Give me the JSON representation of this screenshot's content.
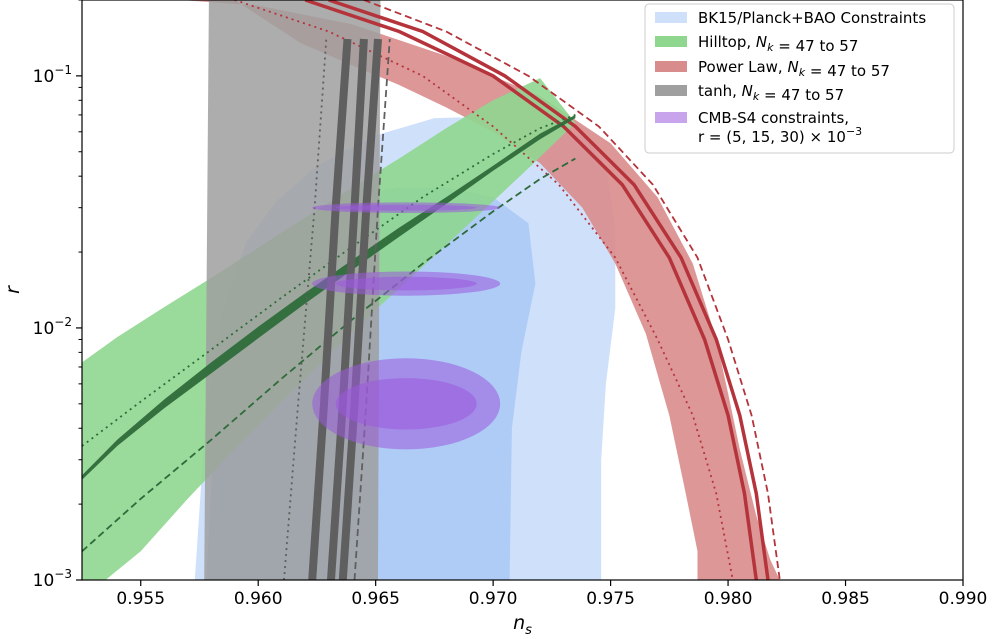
{
  "chart_data": {
    "type": "area",
    "xlabel": "n_s",
    "ylabel": "r",
    "xlim": [
      0.9525,
      0.99
    ],
    "ylim": [
      0.001,
      0.2
    ],
    "yscale": "log",
    "grid": false,
    "legend_position": "top-right",
    "x_ticks": [
      0.955,
      0.96,
      0.965,
      0.97,
      0.975,
      0.98,
      0.985,
      0.99
    ],
    "x_tick_labels": [
      "0.955",
      "0.960",
      "0.965",
      "0.970",
      "0.975",
      "0.980",
      "0.985",
      "0.990"
    ],
    "y_ticks": [
      0.001,
      0.01,
      0.1
    ],
    "y_tick_labels": [
      "10^{-3}",
      "10^{-2}",
      "10^{-1}"
    ],
    "colors": {
      "bk_outer": "#cfe0fb",
      "bk_inner": "#a9c8f6",
      "hilltop": "#8fd68f",
      "hilltop_line": "#2e6b3a",
      "powerlaw": "#d98c8c",
      "powerlaw_line": "#b5343c",
      "tanh": "#9f9f9f",
      "tanh_line": "#5f5f5f",
      "cmbs4": "#9b59dd"
    },
    "legend": [
      {
        "key": "bk15",
        "label": "BK15/Planck+BAO Constraints",
        "color": "#cfe0fb"
      },
      {
        "key": "hilltop",
        "label": "Hilltop, N_k = 47 to 57",
        "color": "#8fd68f"
      },
      {
        "key": "powerlaw",
        "label": "Power Law, N_k = 47 to 57",
        "color": "#d98c8c"
      },
      {
        "key": "tanh",
        "label": "tanh, N_k = 47 to 57",
        "color": "#9f9f9f"
      },
      {
        "key": "cmbs4",
        "label": "CMB-S4 constraints,",
        "label2": "r = (5, 15, 30) × 10^{-3}",
        "color": "#c7a4ec"
      }
    ],
    "series": [
      {
        "name": "BK15/Planck+BAO Constraints",
        "kind": "region",
        "level": "outer",
        "x": [
          0.9573,
          0.9578,
          0.9585,
          0.9595,
          0.9608,
          0.9625,
          0.965,
          0.9675,
          0.97,
          0.9725,
          0.974,
          0.9748,
          0.9752,
          0.9752,
          0.9748,
          0.9746,
          0.9746,
          0.9573
        ],
        "y": [
          0.001,
          0.005,
          0.012,
          0.022,
          0.032,
          0.044,
          0.058,
          0.068,
          0.069,
          0.064,
          0.056,
          0.044,
          0.025,
          0.012,
          0.006,
          0.003,
          0.001,
          0.001
        ]
      },
      {
        "name": "BK15/Planck+BAO Constraints",
        "kind": "region",
        "level": "inner",
        "x": [
          0.9578,
          0.9582,
          0.9588,
          0.9598,
          0.961,
          0.9625,
          0.964,
          0.966,
          0.968,
          0.97,
          0.9715,
          0.9718,
          0.9712,
          0.9708,
          0.9707,
          0.9578
        ],
        "y": [
          0.001,
          0.005,
          0.01,
          0.016,
          0.022,
          0.028,
          0.033,
          0.036,
          0.036,
          0.033,
          0.026,
          0.015,
          0.008,
          0.004,
          0.001,
          0.001
        ]
      },
      {
        "name": "Hilltop, N_k = 47 to 57",
        "kind": "band",
        "x": [
          0.9525,
          0.954,
          0.956,
          0.958,
          0.96,
          0.962,
          0.964,
          0.966,
          0.968,
          0.97,
          0.972,
          0.9735,
          0.9735,
          0.9715,
          0.969,
          0.967,
          0.965,
          0.963,
          0.961,
          0.959,
          0.957,
          0.955,
          0.9535,
          0.9525
        ],
        "y": [
          0.0073,
          0.0092,
          0.0121,
          0.0158,
          0.0208,
          0.0274,
          0.036,
          0.047,
          0.062,
          0.08,
          0.098,
          0.065,
          0.065,
          0.043,
          0.026,
          0.0175,
          0.0118,
          0.0078,
          0.0051,
          0.0033,
          0.0021,
          0.0013,
          0.001,
          0.001
        ]
      },
      {
        "name": "Hilltop, N_k = 47 to 57",
        "kind": "band",
        "x": [
          0.9525,
          0.954,
          0.956,
          0.958,
          0.96,
          0.962,
          0.964,
          0.966,
          0.968,
          0.97,
          0.972,
          0.9735,
          0.9735,
          0.972,
          0.97,
          0.968,
          0.966,
          0.964,
          0.962,
          0.96,
          0.958,
          0.956,
          0.954,
          0.9525
        ],
        "y": [
          0.0025,
          0.0034,
          0.0048,
          0.0066,
          0.0091,
          0.0125,
          0.017,
          0.023,
          0.031,
          0.042,
          0.056,
          0.068,
          0.07,
          0.059,
          0.044,
          0.033,
          0.025,
          0.0186,
          0.0138,
          0.0101,
          0.0073,
          0.0052,
          0.0036,
          0.0026
        ],
        "style": "thick"
      },
      {
        "name": "Hilltop, N_k = 47 to 57",
        "kind": "line",
        "style": "dotted",
        "x": [
          0.9525,
          0.955,
          0.958,
          0.961,
          0.964,
          0.967,
          0.97,
          0.972,
          0.9735
        ],
        "y": [
          0.0034,
          0.0051,
          0.0082,
          0.0132,
          0.021,
          0.033,
          0.049,
          0.062,
          0.07
        ]
      },
      {
        "name": "Hilltop, N_k = 47 to 57",
        "kind": "line",
        "style": "dashed",
        "x": [
          0.9525,
          0.955,
          0.958,
          0.961,
          0.964,
          0.967,
          0.97,
          0.972,
          0.9735
        ],
        "y": [
          0.0013,
          0.0021,
          0.0036,
          0.0063,
          0.0108,
          0.018,
          0.029,
          0.039,
          0.047
        ]
      },
      {
        "name": "Power Law, N_k = 47 to 57",
        "kind": "band",
        "x": [
          0.9567,
          0.96,
          0.964,
          0.968,
          0.972,
          0.975,
          0.977,
          0.9785,
          0.9795,
          0.98,
          0.9805,
          0.9812,
          0.9818,
          0.9822,
          0.9822,
          0.9787,
          0.9787,
          0.9782,
          0.9775,
          0.9765,
          0.9752,
          0.9738,
          0.972,
          0.97,
          0.968,
          0.966,
          0.964,
          0.9618,
          0.959
        ],
        "y": [
          0.2,
          0.19,
          0.16,
          0.12,
          0.083,
          0.054,
          0.033,
          0.018,
          0.009,
          0.0055,
          0.0033,
          0.0018,
          0.0012,
          0.001,
          0.001,
          0.001,
          0.0013,
          0.0022,
          0.0045,
          0.0095,
          0.018,
          0.03,
          0.045,
          0.06,
          0.075,
          0.092,
          0.11,
          0.135,
          0.2
        ]
      },
      {
        "name": "Power Law, N_k = 47 to 57",
        "kind": "line",
        "style": "solid",
        "x": [
          0.962,
          0.966,
          0.97,
          0.973,
          0.9755,
          0.9775,
          0.979,
          0.98,
          0.9807,
          0.9812
        ],
        "y": [
          0.2,
          0.15,
          0.1,
          0.063,
          0.037,
          0.019,
          0.009,
          0.0045,
          0.0022,
          0.001
        ]
      },
      {
        "name": "Power Law, N_k = 47 to 57",
        "kind": "line",
        "style": "solid",
        "x": [
          0.963,
          0.967,
          0.9705,
          0.9735,
          0.976,
          0.978,
          0.9795,
          0.9805,
          0.9812,
          0.9817
        ],
        "y": [
          0.2,
          0.15,
          0.1,
          0.063,
          0.037,
          0.019,
          0.009,
          0.0045,
          0.0022,
          0.001
        ]
      },
      {
        "name": "Power Law, N_k = 47 to 57",
        "kind": "line",
        "style": "dotted",
        "x": [
          0.959,
          0.963,
          0.967,
          0.97,
          0.9728,
          0.9752,
          0.977,
          0.9785,
          0.9795,
          0.9802
        ],
        "y": [
          0.2,
          0.15,
          0.1,
          0.063,
          0.037,
          0.019,
          0.009,
          0.0045,
          0.0022,
          0.001
        ]
      },
      {
        "name": "Power Law, N_k = 47 to 57",
        "kind": "line",
        "style": "dashed",
        "x": [
          0.9645,
          0.968,
          0.9715,
          0.9745,
          0.9768,
          0.9787,
          0.98,
          0.981,
          0.9817,
          0.9822
        ],
        "y": [
          0.2,
          0.15,
          0.1,
          0.063,
          0.037,
          0.019,
          0.009,
          0.0045,
          0.0022,
          0.001
        ]
      },
      {
        "name": "tanh, N_k = 47 to 57",
        "kind": "band",
        "x": [
          0.9577,
          0.9579,
          0.9652,
          0.9651
        ],
        "y": [
          0.001,
          0.2,
          0.2,
          0.001
        ]
      },
      {
        "name": "tanh, N_k = 47 to 57",
        "kind": "line",
        "style": "thick",
        "x": [
          0.9623,
          0.9628,
          0.9633,
          0.9638
        ],
        "y": [
          0.001,
          0.005,
          0.03,
          0.14
        ]
      },
      {
        "name": "tanh, N_k = 47 to 57",
        "kind": "line",
        "style": "thick",
        "x": [
          0.9631,
          0.9636,
          0.9641,
          0.9645
        ],
        "y": [
          0.001,
          0.005,
          0.03,
          0.14
        ]
      },
      {
        "name": "tanh, N_k = 47 to 57",
        "kind": "line",
        "style": "thick",
        "x": [
          0.9636,
          0.9641,
          0.9646,
          0.9651
        ],
        "y": [
          0.001,
          0.005,
          0.03,
          0.14
        ]
      },
      {
        "name": "tanh, N_k = 47 to 57",
        "kind": "line",
        "style": "dotted",
        "x": [
          0.9611,
          0.9617,
          0.9624,
          0.9629
        ],
        "y": [
          0.001,
          0.005,
          0.03,
          0.14
        ]
      },
      {
        "name": "tanh, N_k = 47 to 57",
        "kind": "line",
        "style": "dashed",
        "x": [
          0.9641,
          0.9646,
          0.9651,
          0.9656
        ],
        "y": [
          0.001,
          0.005,
          0.03,
          0.14
        ]
      },
      {
        "name": "CMB-S4 constraints, r = (5, 15, 30) × 10^{-3}",
        "kind": "ellipses",
        "ellipses": [
          {
            "cx": 0.9663,
            "cy": 0.005,
            "rx_outer": 0.004,
            "rx_inner": 0.003,
            "log_ry_outer": 0.181,
            "log_ry_inner": 0.102
          },
          {
            "cx": 0.9663,
            "cy": 0.015,
            "rx_outer": 0.004,
            "rx_inner": 0.003,
            "log_ry_outer": 0.048,
            "log_ry_inner": 0.027
          },
          {
            "cx": 0.9663,
            "cy": 0.03,
            "rx_outer": 0.004,
            "rx_inner": 0.003,
            "log_ry_outer": 0.021,
            "log_ry_inner": 0.012
          }
        ]
      }
    ]
  }
}
